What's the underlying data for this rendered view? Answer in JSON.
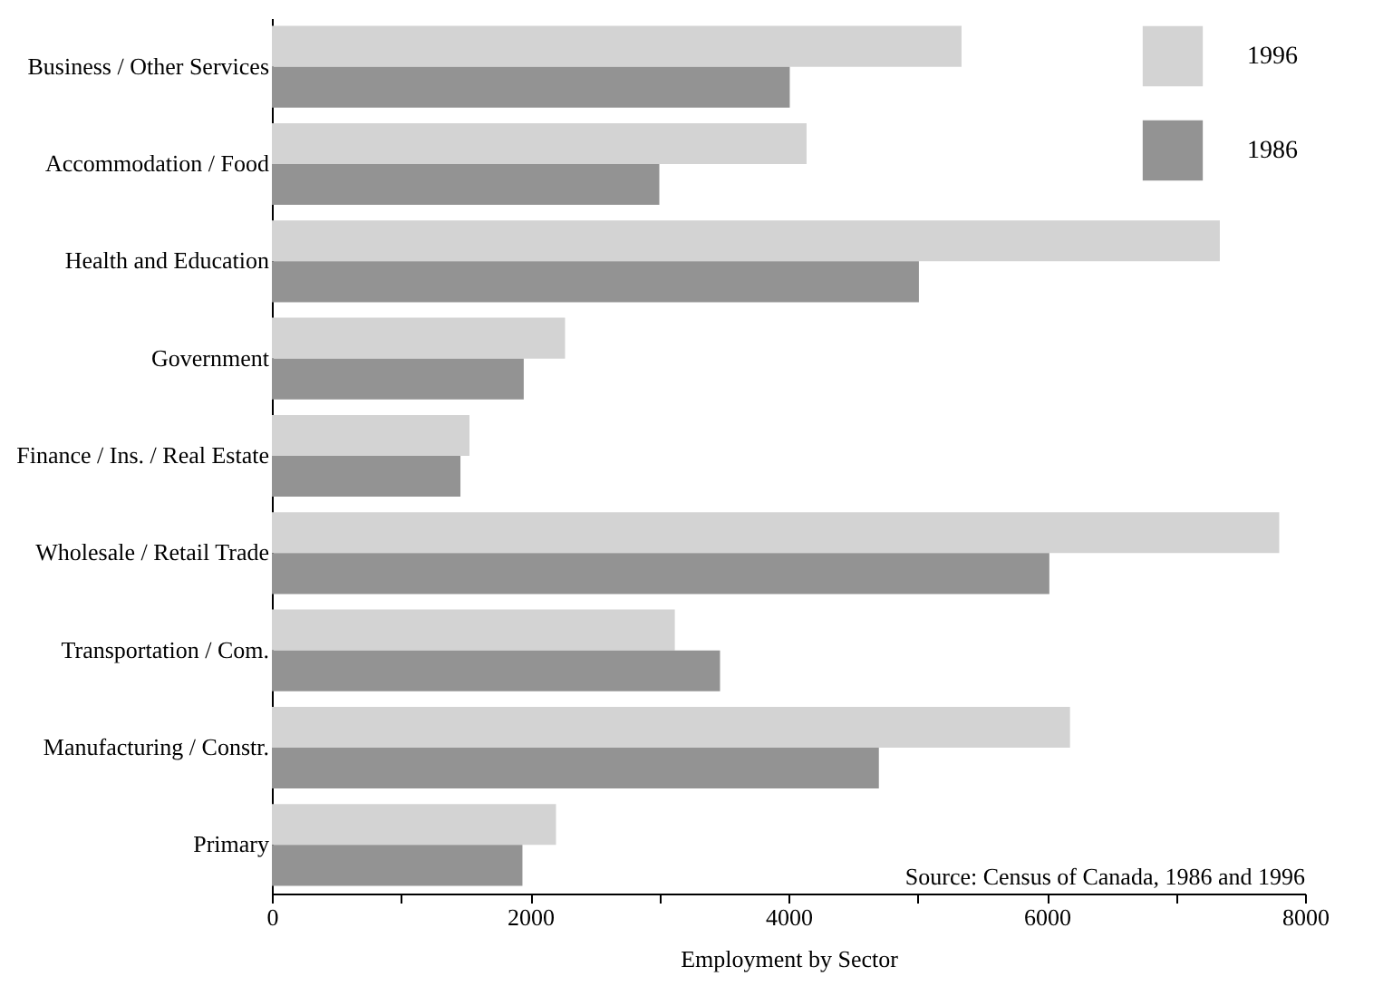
{
  "chart_data": {
    "type": "bar",
    "orientation": "horizontal",
    "xlabel": "Employment by Sector",
    "categories": [
      "Business / Other Services",
      "Accommodation / Food",
      "Health and Education",
      "Government",
      "Finance / Ins. / Real Estate",
      "Wholesale / Retail Trade",
      "Transportation / Com.",
      "Manufacturing / Constr.",
      "Primary"
    ],
    "series": [
      {
        "name": "1996",
        "color": "#d3d3d3",
        "values": [
          5340,
          4140,
          7340,
          2270,
          1530,
          7800,
          3120,
          6180,
          2200
        ]
      },
      {
        "name": "1986",
        "color": "#939393",
        "values": [
          4010,
          3000,
          5010,
          1950,
          1460,
          6020,
          3470,
          4700,
          1940
        ]
      }
    ],
    "xlim": [
      0,
      8000
    ],
    "xticks": [
      0,
      {
        "value": 1000,
        "label": null
      },
      2000,
      {
        "value": 3000,
        "label": null
      },
      4000,
      {
        "value": 5000,
        "label": null
      },
      6000,
      {
        "value": 7000,
        "label": null
      },
      8000
    ],
    "grid": false,
    "legend": "top right",
    "annotations": [
      "Source:  Census of Canada, 1986 and 1996"
    ]
  }
}
